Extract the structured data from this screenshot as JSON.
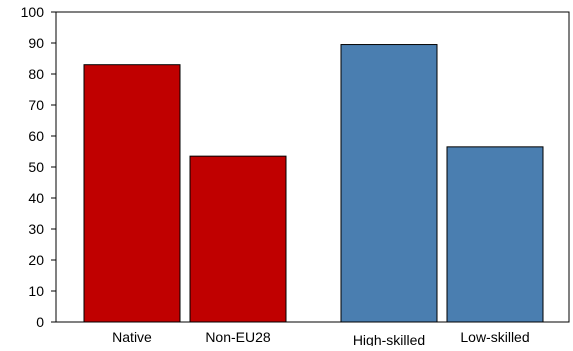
{
  "chart_data": {
    "type": "bar",
    "title": "",
    "xlabel": "",
    "ylabel": "",
    "ylim": [
      0,
      100
    ],
    "yticks": [
      0,
      10,
      20,
      30,
      40,
      50,
      60,
      70,
      80,
      90,
      100
    ],
    "grid": false,
    "legend": "none",
    "bars": [
      {
        "label": "Native",
        "value": 83,
        "color": "#C00000"
      },
      {
        "label": "Non-EU28",
        "value": 53.5,
        "color": "#C00000"
      },
      {
        "label": "High-skilled",
        "value": 89.5,
        "color": "#4A7EB0"
      },
      {
        "label": "Low-skilled",
        "value": 56.5,
        "color": "#4A7EB0"
      }
    ]
  }
}
